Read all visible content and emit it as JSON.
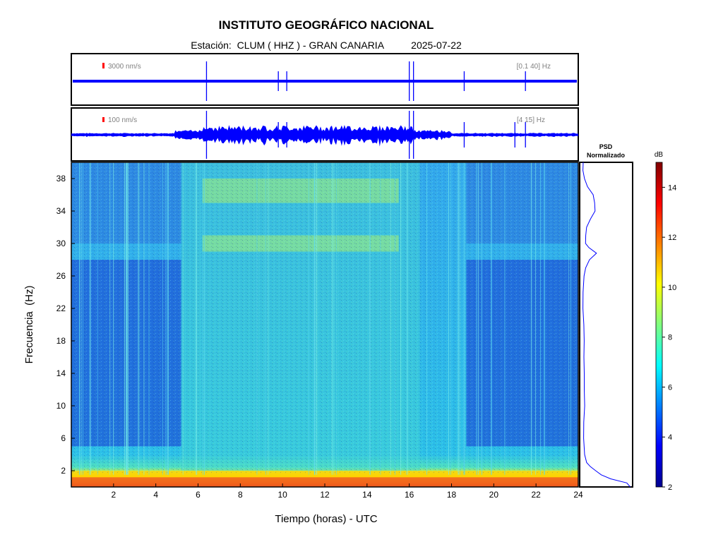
{
  "header": {
    "title": "INSTITUTO GEOGRÁFICO NACIONAL",
    "station_label": "Estación:",
    "station": "CLUM ( HHZ ) - GRAN CANARIA",
    "date": "2025-07-22"
  },
  "chart_data": [
    {
      "type": "line",
      "panel": "waveform-top",
      "scale_label": "3000 nm/s",
      "band_label": "[0.1 40] Hz",
      "x_range": [
        0,
        24
      ],
      "line_color": "#0000ff",
      "scale_color": "#ff0000",
      "spikes_hours": [
        6.4,
        9.8,
        10.2,
        16.0,
        16.2,
        18.6,
        21.5
      ]
    },
    {
      "type": "line",
      "panel": "waveform-bottom",
      "scale_label": "100 nm/s",
      "band_label": "[4 15] Hz",
      "x_range": [
        0,
        24
      ],
      "line_color": "#0000ff",
      "scale_color": "#ff0000",
      "spikes_hours": [
        6.4,
        9.8,
        10.2,
        16.0,
        16.2,
        18.6,
        21.0,
        21.5
      ]
    },
    {
      "type": "heatmap",
      "panel": "spectrogram",
      "xlabel": "Tiempo (horas) - UTC",
      "ylabel": "Frecuencia  (Hz)",
      "x_range": [
        0,
        24
      ],
      "y_range": [
        0,
        40
      ],
      "x_ticks": [
        2,
        4,
        6,
        8,
        10,
        12,
        14,
        16,
        18,
        20,
        22,
        24
      ],
      "y_ticks": [
        2,
        6,
        10,
        14,
        18,
        22,
        26,
        30,
        34,
        38
      ],
      "quiet_hours": [
        [
          0,
          5.2
        ],
        [
          18.7,
          24
        ]
      ],
      "active_hours": [
        5.2,
        16.5
      ]
    },
    {
      "type": "line",
      "panel": "psd",
      "title_line1": "PSD",
      "title_line2": "Normalizado",
      "y_range": [
        0,
        40
      ],
      "freq": [
        0,
        0.5,
        1,
        1.5,
        2,
        2.5,
        3,
        4,
        5,
        6,
        8,
        10,
        12,
        14,
        16,
        18,
        20,
        22,
        24,
        26,
        27,
        28,
        28.8,
        29.5,
        30,
        31,
        32,
        33,
        34,
        35,
        36,
        37,
        38,
        39,
        40
      ],
      "value": [
        0.98,
        0.9,
        0.6,
        0.4,
        0.3,
        0.2,
        0.12,
        0.08,
        0.07,
        0.06,
        0.06,
        0.06,
        0.05,
        0.05,
        0.05,
        0.05,
        0.05,
        0.05,
        0.04,
        0.05,
        0.1,
        0.18,
        0.3,
        0.15,
        0.1,
        0.08,
        0.1,
        0.2,
        0.27,
        0.28,
        0.25,
        0.12,
        0.08,
        0.05,
        0.05
      ]
    },
    {
      "type": "heatmap",
      "panel": "colorbar",
      "label": "dB",
      "range": [
        2,
        15
      ],
      "ticks": [
        2,
        4,
        6,
        8,
        10,
        12,
        14
      ]
    }
  ]
}
